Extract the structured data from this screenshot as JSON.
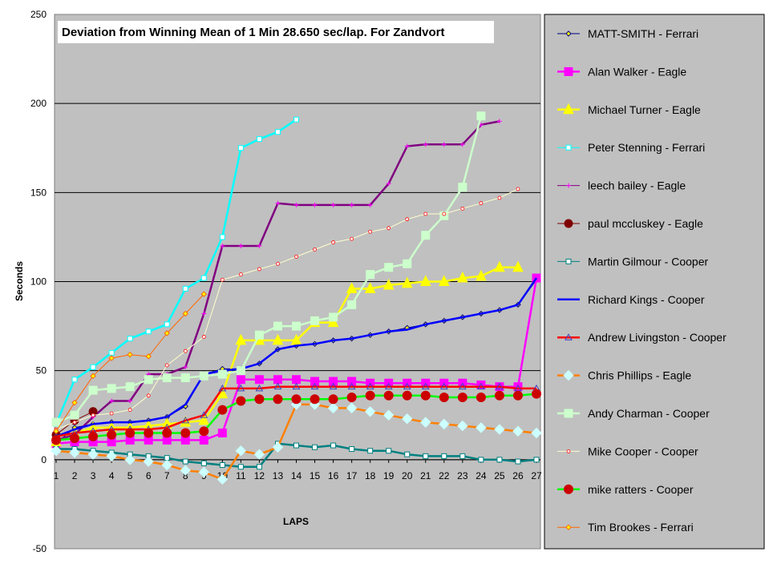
{
  "chart_data": {
    "type": "line",
    "title": "Deviation from Winning Mean of 1 Min 28.650 sec/lap. For Zandvort",
    "xlabel": "LAPS",
    "ylabel": "Seconds",
    "ylim": [
      -50,
      250
    ],
    "yticks": [
      -50,
      0,
      50,
      100,
      150,
      200,
      250
    ],
    "categories": [
      "1",
      "2",
      "3",
      "4",
      "5",
      "6",
      "7",
      "8",
      "9",
      "10",
      "11",
      "12",
      "13",
      "14",
      "15",
      "16",
      "17",
      "18",
      "19",
      "20",
      "21",
      "22",
      "23",
      "24",
      "25",
      "26",
      "27"
    ],
    "grid": "horizontal",
    "legend_position": "right",
    "plot_background": "#c0c0c0",
    "series": [
      {
        "name": "MATT-SMITH - Ferrari",
        "color": "#000080",
        "marker": "diamond-small",
        "values": [
          9,
          18,
          20,
          21,
          21,
          22,
          24,
          30,
          48,
          51,
          51,
          54,
          62,
          64,
          65,
          67,
          68,
          70,
          72,
          74,
          76,
          78,
          80,
          82,
          84,
          87,
          101
        ]
      },
      {
        "name": "Alan Walker - Eagle",
        "color": "#ff00ff",
        "marker": "square",
        "values": [
          9,
          10,
          10,
          10,
          11,
          11,
          11,
          11,
          11,
          15,
          45,
          45,
          45,
          45,
          44,
          44,
          44,
          43,
          43,
          43,
          43,
          43,
          43,
          42,
          41,
          41,
          102
        ]
      },
      {
        "name": "Michael Turner - Eagle",
        "color": "#ffff00",
        "marker": "triangle",
        "values": [
          10,
          15,
          18,
          18,
          18,
          19,
          20,
          21,
          22,
          37,
          67,
          67,
          67,
          67,
          77,
          77,
          96,
          96,
          98,
          99,
          100,
          100,
          102,
          103,
          108,
          108,
          null
        ]
      },
      {
        "name": "Peter Stenning - Ferrari",
        "color": "#00ffff",
        "marker": "square-small",
        "values": [
          20,
          45,
          52,
          60,
          68,
          72,
          76,
          96,
          102,
          125,
          175,
          180,
          184,
          191,
          null,
          null,
          null,
          null,
          null,
          null,
          null,
          null,
          null,
          null,
          null,
          null,
          null
        ]
      },
      {
        "name": "leech bailey - Eagle",
        "color": "#800080",
        "marker": "plus",
        "values": [
          11,
          14,
          24,
          33,
          33,
          48,
          48,
          52,
          82,
          120,
          120,
          120,
          144,
          143,
          143,
          143,
          143,
          143,
          155,
          176,
          177,
          177,
          177,
          188,
          190,
          null,
          null
        ]
      },
      {
        "name": "paul mccluskey - Eagle",
        "color": "#800000",
        "marker": "circle",
        "values": [
          14,
          22,
          27,
          null,
          null,
          null,
          null,
          null,
          null,
          null,
          null,
          null,
          null,
          null,
          null,
          null,
          null,
          null,
          null,
          null,
          null,
          null,
          null,
          null,
          null,
          null,
          null
        ]
      },
      {
        "name": "Martin Gilmour - Cooper",
        "color": "#008080",
        "marker": "square-small",
        "values": [
          6,
          6,
          5,
          4,
          3,
          2,
          1,
          -1,
          -2,
          -3,
          -4,
          -4,
          9,
          8,
          7,
          8,
          6,
          5,
          5,
          3,
          2,
          2,
          2,
          0,
          0,
          -1,
          0
        ]
      },
      {
        "name": "Richard Kings - Cooper",
        "color": "#0000ff",
        "marker": "none",
        "values": [
          13,
          17,
          20,
          21,
          21,
          22,
          24,
          31,
          48,
          50,
          51,
          54,
          62,
          64,
          65,
          67,
          68,
          70,
          72,
          73,
          76,
          78,
          80,
          82,
          84,
          87,
          102
        ]
      },
      {
        "name": "Andrew Livingston - Cooper",
        "color": "#ff0000",
        "marker": "triangle-small",
        "values": [
          13,
          15,
          16,
          17,
          17,
          17,
          18,
          22,
          25,
          40,
          40,
          40,
          41,
          41,
          41,
          41,
          41,
          41,
          41,
          41,
          41,
          41,
          41,
          41,
          41,
          40,
          40
        ]
      },
      {
        "name": "Chris Phillips - Eagle",
        "color": "#ff8000",
        "marker": "diamond",
        "values": [
          5,
          4,
          3,
          2,
          0,
          -1,
          -3,
          -6,
          -7,
          -11,
          5,
          3,
          7,
          31,
          31,
          29,
          29,
          27,
          25,
          23,
          21,
          20,
          19,
          18,
          17,
          16,
          15
        ]
      },
      {
        "name": "Andy Charman - Cooper",
        "color": "#ccffcc",
        "marker": "square",
        "values": [
          21,
          25,
          39,
          40,
          41,
          45,
          46,
          46,
          47,
          48,
          50,
          70,
          75,
          75,
          78,
          80,
          87,
          104,
          108,
          110,
          126,
          137,
          153,
          193,
          null,
          null,
          null
        ]
      },
      {
        "name": "Mike Cooper - Cooper",
        "color": "#ffffcc",
        "marker": "circle-small",
        "values": [
          17,
          21,
          25,
          26,
          28,
          36,
          53,
          61,
          69,
          101,
          104,
          107,
          110,
          114,
          118,
          122,
          124,
          128,
          130,
          135,
          138,
          138,
          141,
          144,
          147,
          152,
          null
        ]
      },
      {
        "name": "mike ratters - Cooper",
        "color": "#00ff00",
        "marker": "circle-big",
        "values": [
          11,
          12,
          13,
          14,
          15,
          15,
          15,
          15,
          16,
          28,
          33,
          34,
          34,
          34,
          34,
          34,
          35,
          36,
          36,
          36,
          36,
          35,
          35,
          35,
          36,
          36,
          37
        ]
      },
      {
        "name": "Tim Brookes - Ferrari",
        "color": "#ff6600",
        "marker": "diamond-small",
        "values": [
          16,
          32,
          47,
          57,
          59,
          58,
          71,
          82,
          93,
          null,
          null,
          null,
          null,
          null,
          null,
          null,
          null,
          null,
          null,
          null,
          null,
          null,
          null,
          null,
          null,
          null,
          null
        ]
      }
    ]
  }
}
